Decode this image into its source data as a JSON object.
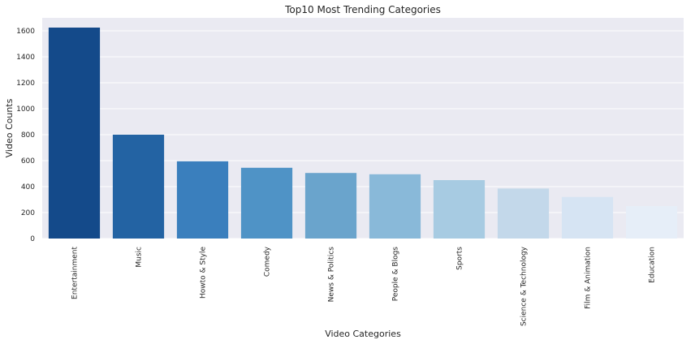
{
  "chart_data": {
    "type": "bar",
    "title": "Top10 Most Trending Categories",
    "xlabel": "Video Categories",
    "ylabel": "Video Counts",
    "categories": [
      "Entertainment",
      "Music",
      "Howto & Style",
      "Comedy",
      "News & Politics",
      "People & Blogs",
      "Sports",
      "Science & Technology",
      "Film & Animation",
      "Education"
    ],
    "values": [
      1625,
      800,
      595,
      545,
      505,
      495,
      450,
      385,
      320,
      250
    ],
    "ylim": [
      0,
      1700
    ],
    "yticks": [
      0,
      200,
      400,
      600,
      800,
      1000,
      1200,
      1400,
      1600
    ],
    "grid": true,
    "colors": [
      "#144a8a",
      "#2363a3",
      "#3a7fbd",
      "#4f93c6",
      "#6aa4cc",
      "#89b9d9",
      "#a7cbe2",
      "#c3d8ea",
      "#d6e4f3",
      "#e6eef8"
    ],
    "background": "#eaeaf2"
  }
}
